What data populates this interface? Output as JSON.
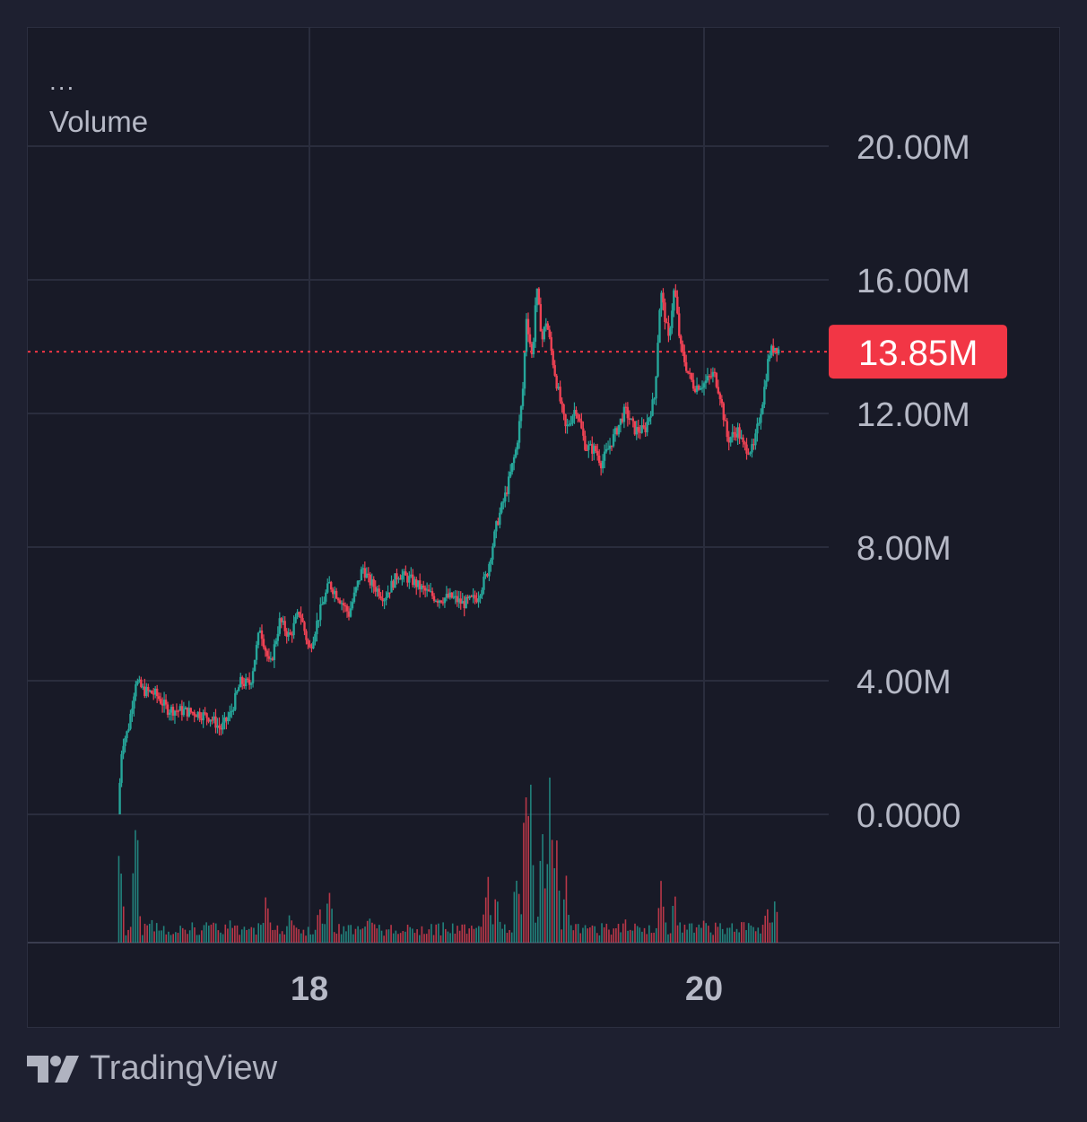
{
  "legend": {
    "menu": "...",
    "indicator_label": "Volume"
  },
  "brand": {
    "name": "TradingView",
    "icon": "tradingview-logo-icon"
  },
  "colors": {
    "background": "#181a27",
    "grid": "#2a2d3d",
    "up": "#26a69a",
    "down": "#ef4254",
    "last_price_bg": "#f23645",
    "axis_text": "#b6b9c6"
  },
  "chart_data": {
    "type": "candlestick",
    "x_ticks": [
      "18",
      "20"
    ],
    "y_ticks": [
      "20.00M",
      "16.00M",
      "12.00M",
      "8.00M",
      "4.00M",
      "0.0000"
    ],
    "ylim": [
      0,
      20000000
    ],
    "last_price_label": "13.85M",
    "last_price": 13850000,
    "grid": true,
    "volume_pane": true,
    "price_path": [
      [
        17.03,
        0.0
      ],
      [
        17.05,
        2.1
      ],
      [
        17.08,
        2.5
      ],
      [
        17.12,
        4.0
      ],
      [
        17.16,
        3.7
      ],
      [
        17.22,
        3.6
      ],
      [
        17.28,
        3.15
      ],
      [
        17.35,
        3.1
      ],
      [
        17.42,
        3.05
      ],
      [
        17.5,
        2.9
      ],
      [
        17.55,
        2.55
      ],
      [
        17.6,
        3.0
      ],
      [
        17.65,
        3.95
      ],
      [
        17.7,
        3.9
      ],
      [
        17.75,
        5.6
      ],
      [
        17.8,
        4.4
      ],
      [
        17.85,
        5.8
      ],
      [
        17.9,
        5.3
      ],
      [
        17.95,
        6.1
      ],
      [
        18.0,
        4.9
      ],
      [
        18.05,
        6.0
      ],
      [
        18.1,
        6.9
      ],
      [
        18.15,
        6.5
      ],
      [
        18.2,
        6.0
      ],
      [
        18.27,
        7.4
      ],
      [
        18.3,
        7.0
      ],
      [
        18.38,
        6.5
      ],
      [
        18.45,
        7.2
      ],
      [
        18.52,
        7.0
      ],
      [
        18.58,
        6.7
      ],
      [
        18.65,
        6.45
      ],
      [
        18.72,
        6.5
      ],
      [
        18.78,
        6.3
      ],
      [
        18.85,
        6.5
      ],
      [
        18.9,
        7.2
      ],
      [
        18.95,
        8.7
      ],
      [
        19.0,
        9.7
      ],
      [
        19.05,
        11.0
      ],
      [
        19.08,
        12.5
      ],
      [
        19.1,
        14.9
      ],
      [
        19.13,
        13.6
      ],
      [
        19.15,
        15.8
      ],
      [
        19.18,
        14.2
      ],
      [
        19.2,
        14.8
      ],
      [
        19.25,
        13.0
      ],
      [
        19.3,
        11.5
      ],
      [
        19.35,
        12.2
      ],
      [
        19.4,
        11.0
      ],
      [
        19.45,
        10.9
      ],
      [
        19.48,
        10.5
      ],
      [
        19.55,
        11.4
      ],
      [
        19.6,
        12.1
      ],
      [
        19.65,
        11.5
      ],
      [
        19.7,
        11.5
      ],
      [
        19.75,
        12.5
      ],
      [
        19.78,
        15.7
      ],
      [
        19.82,
        14.2
      ],
      [
        19.85,
        15.8
      ],
      [
        19.88,
        14.0
      ],
      [
        19.92,
        13.2
      ],
      [
        19.95,
        12.8
      ],
      [
        20.0,
        12.9
      ],
      [
        20.05,
        13.2
      ],
      [
        20.08,
        12.6
      ],
      [
        20.12,
        11.2
      ],
      [
        20.17,
        11.5
      ],
      [
        20.2,
        11.0
      ],
      [
        20.25,
        10.9
      ],
      [
        20.3,
        12.5
      ],
      [
        20.33,
        13.8
      ],
      [
        20.36,
        14.0
      ],
      [
        20.38,
        13.9
      ]
    ],
    "volume_bars": [
      [
        17.04,
        0.55
      ],
      [
        17.12,
        0.75
      ],
      [
        17.2,
        0.12
      ],
      [
        17.6,
        0.12
      ],
      [
        17.78,
        0.22
      ],
      [
        17.9,
        0.18
      ],
      [
        18.05,
        0.2
      ],
      [
        18.1,
        0.28
      ],
      [
        18.3,
        0.14
      ],
      [
        18.9,
        0.34
      ],
      [
        18.95,
        0.24
      ],
      [
        19.05,
        0.42
      ],
      [
        19.1,
        1.0
      ],
      [
        19.12,
        0.72
      ],
      [
        19.18,
        0.52
      ],
      [
        19.22,
        0.8
      ],
      [
        19.25,
        0.55
      ],
      [
        19.3,
        0.3
      ],
      [
        19.6,
        0.14
      ],
      [
        19.78,
        0.3
      ],
      [
        19.85,
        0.22
      ],
      [
        20.0,
        0.12
      ],
      [
        20.2,
        0.15
      ],
      [
        20.32,
        0.2
      ],
      [
        20.36,
        0.26
      ]
    ]
  }
}
